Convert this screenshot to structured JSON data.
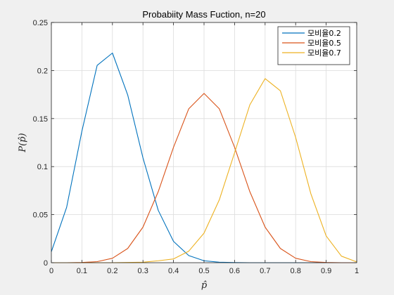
{
  "chart_data": {
    "type": "line",
    "title": "Probabiity Mass Fuction, n=20",
    "xlabel": "p̂",
    "ylabel": "P(p̂)",
    "xlim": [
      0,
      1
    ],
    "ylim": [
      0,
      0.25
    ],
    "xticks": [
      "0",
      "0.1",
      "0.2",
      "0.3",
      "0.4",
      "0.5",
      "0.6",
      "0.7",
      "0.8",
      "0.9",
      "1"
    ],
    "yticks": [
      "0",
      "0.05",
      "0.1",
      "0.15",
      "0.2",
      "0.25"
    ],
    "grid": true,
    "legend_position": "top-right",
    "x": [
      0,
      0.05,
      0.1,
      0.15,
      0.2,
      0.25,
      0.3,
      0.35,
      0.4,
      0.45,
      0.5,
      0.55,
      0.6,
      0.65,
      0.7,
      0.75,
      0.8,
      0.85,
      0.9,
      0.95,
      1
    ],
    "series": [
      {
        "name": "모비율0.2",
        "color": "#0072BD",
        "values": [
          0.0115,
          0.0576,
          0.1369,
          0.2054,
          0.2182,
          0.1746,
          0.1091,
          0.0545,
          0.0222,
          0.0074,
          0.002,
          0.0005,
          0.0001,
          0,
          0,
          0,
          0,
          0,
          0,
          0,
          0
        ]
      },
      {
        "name": "모비율0.5",
        "color": "#D95319",
        "values": [
          0,
          0,
          0.0002,
          0.0011,
          0.0046,
          0.0148,
          0.037,
          0.0739,
          0.1201,
          0.1602,
          0.1762,
          0.1602,
          0.1201,
          0.0739,
          0.037,
          0.0148,
          0.0046,
          0.0011,
          0.0002,
          0,
          0
        ]
      },
      {
        "name": "모비율0.7",
        "color": "#EDB120",
        "values": [
          0,
          0,
          0,
          0,
          0,
          0.0002,
          0.0005,
          0.002,
          0.0039,
          0.012,
          0.0308,
          0.0654,
          0.1144,
          0.1643,
          0.1916,
          0.1789,
          0.1304,
          0.0716,
          0.0278,
          0.0068,
          0.0008
        ]
      }
    ]
  }
}
